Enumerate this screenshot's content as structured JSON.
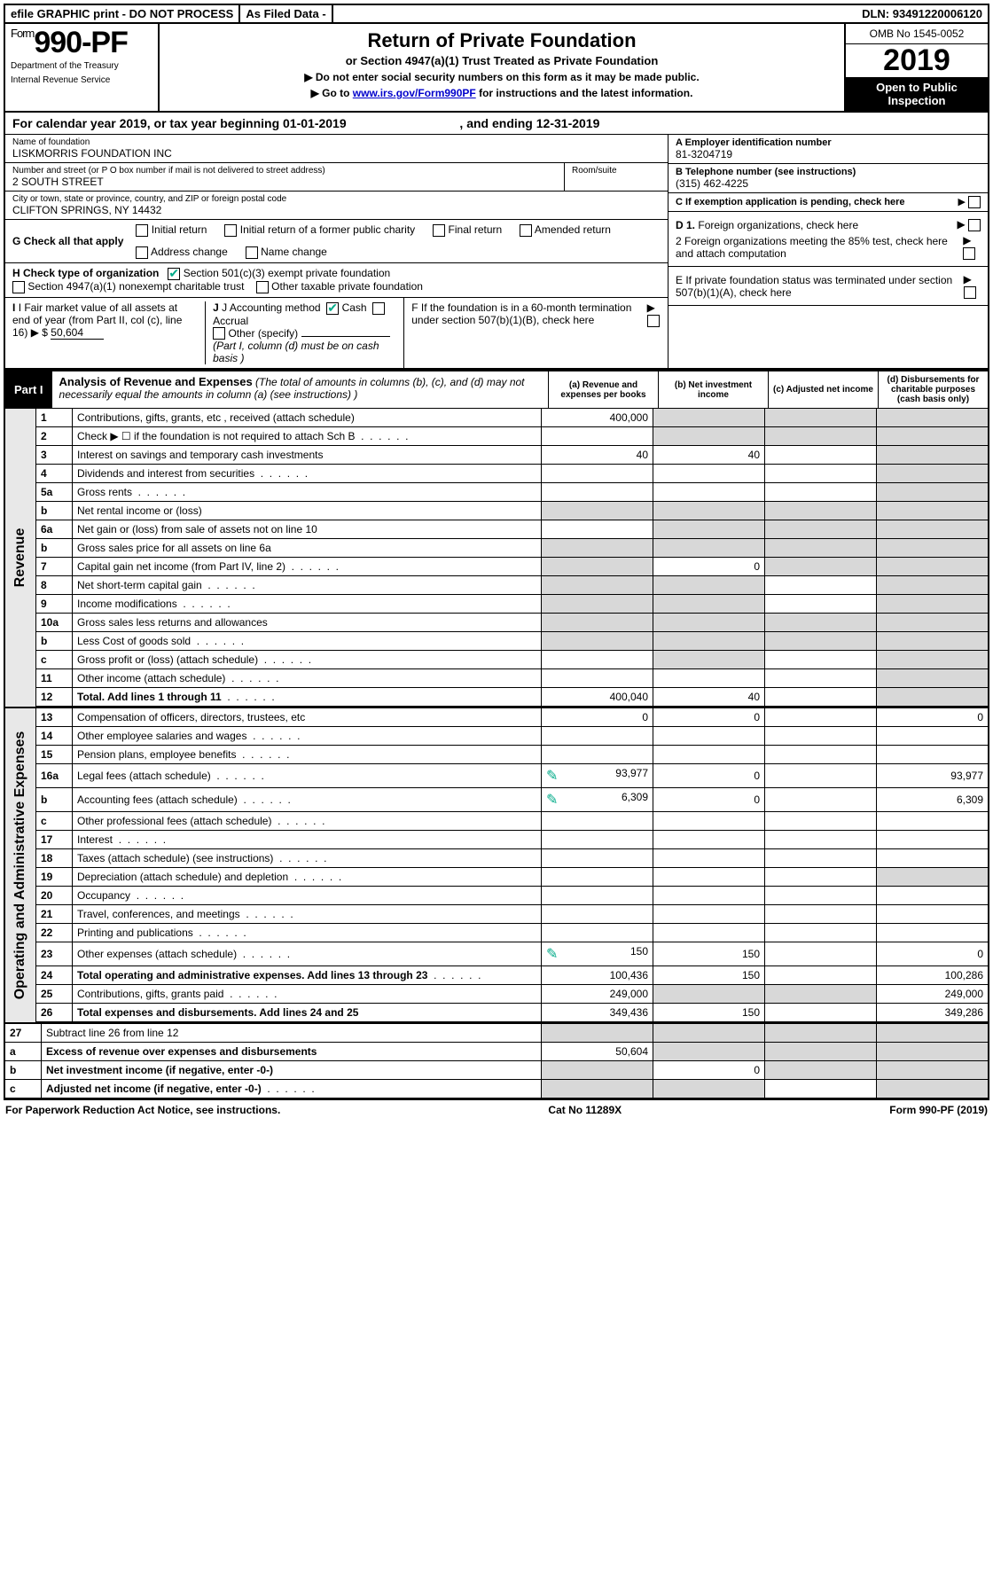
{
  "topbar": {
    "efile": "efile GRAPHIC print - DO NOT PROCESS",
    "asfiled": "As Filed Data -",
    "dln_label": "DLN:",
    "dln": "93491220006120"
  },
  "header": {
    "form_prefix": "Form",
    "form_number": "990-PF",
    "dept1": "Department of the Treasury",
    "dept2": "Internal Revenue Service",
    "title": "Return of Private Foundation",
    "subtitle": "or Section 4947(a)(1) Trust Treated as Private Foundation",
    "instr1": "▶ Do not enter social security numbers on this form as it may be made public.",
    "instr2_pre": "▶ Go to ",
    "instr2_link": "www.irs.gov/Form990PF",
    "instr2_post": " for instructions and the latest information.",
    "omb": "OMB No 1545-0052",
    "year": "2019",
    "open": "Open to Public Inspection"
  },
  "cal": {
    "text_pre": "For calendar year 2019, or tax year beginning ",
    "begin": "01-01-2019",
    "mid": ", and ending ",
    "end": "12-31-2019"
  },
  "entity": {
    "name_label": "Name of foundation",
    "name": "LISKMORRIS FOUNDATION INC",
    "addr_label": "Number and street (or P O  box number if mail is not delivered to street address)",
    "addr": "2 SOUTH STREET",
    "room_label": "Room/suite",
    "city_label": "City or town, state or province, country, and ZIP or foreign postal code",
    "city": "CLIFTON SPRINGS, NY  14432",
    "a_label": "A Employer identification number",
    "a_val": "81-3204719",
    "b_label": "B Telephone number (see instructions)",
    "b_val": "(315) 462-4225",
    "c_label": "C If exemption application is pending, check here"
  },
  "g": {
    "label": "G Check all that apply",
    "opts": [
      "Initial return",
      "Initial return of a former public charity",
      "Final return",
      "Amended return",
      "Address change",
      "Name change"
    ]
  },
  "h": {
    "label": "H Check type of organization",
    "opt1": "Section 501(c)(3) exempt private foundation",
    "opt2": "Section 4947(a)(1) nonexempt charitable trust",
    "opt3": "Other taxable private foundation"
  },
  "d": {
    "d1": "D 1. Foreign organizations, check here",
    "d2": "2 Foreign organizations meeting the 85% test, check here and attach computation",
    "e": "E  If private foundation status was terminated under section 507(b)(1)(A), check here",
    "f": "F  If the foundation is in a 60-month termination under section 507(b)(1)(B), check here"
  },
  "i": {
    "label": "I Fair market value of all assets at end of year (from Part II, col  (c), line 16) ",
    "arrow": "▶",
    "dollar": "$",
    "val": "50,604"
  },
  "j": {
    "label": "J Accounting method",
    "cash": "Cash",
    "accrual": "Accrual",
    "other": "Other (specify)",
    "note": "(Part I, column (d) must be on cash basis )"
  },
  "part1": {
    "label": "Part I",
    "title": "Analysis of Revenue and Expenses",
    "desc": " (The total of amounts in columns (b), (c), and (d) may not necessarily equal the amounts in column (a) (see instructions) )",
    "col_a": "(a) Revenue and expenses per books",
    "col_b": "(b) Net investment income",
    "col_c": "(c) Adjusted net income",
    "col_d": "(d) Disbursements for charitable purposes (cash basis only)"
  },
  "rev_label": "Revenue",
  "exp_label": "Operating and Administrative Expenses",
  "rows": [
    {
      "n": "1",
      "d": "Contributions, gifts, grants, etc , received (attach schedule)",
      "a": "400,000",
      "b": "",
      "c": "",
      "dcol": "",
      "b_shade": true,
      "c_shade": true,
      "d_shade": true
    },
    {
      "n": "2",
      "d": "Check ▶ ☐ if the foundation is not required to attach Sch  B",
      "a": "",
      "b": "",
      "c": "",
      "dcol": "",
      "a_shade": false,
      "b_shade": true,
      "c_shade": true,
      "d_shade": true,
      "dots": true
    },
    {
      "n": "3",
      "d": "Interest on savings and temporary cash investments",
      "a": "40",
      "b": "40",
      "c": "",
      "dcol": "",
      "d_shade": true
    },
    {
      "n": "4",
      "d": "Dividends and interest from securities",
      "a": "",
      "b": "",
      "c": "",
      "dcol": "",
      "d_shade": true,
      "dots": true
    },
    {
      "n": "5a",
      "d": "Gross rents",
      "a": "",
      "b": "",
      "c": "",
      "dcol": "",
      "d_shade": true,
      "dots": true
    },
    {
      "n": "b",
      "d": "Net rental income or (loss)",
      "a": "",
      "b": "",
      "c": "",
      "dcol": "",
      "a_shade": true,
      "b_shade": true,
      "c_shade": true,
      "d_shade": true
    },
    {
      "n": "6a",
      "d": "Net gain or (loss) from sale of assets not on line 10",
      "a": "",
      "b": "",
      "c": "",
      "dcol": "",
      "b_shade": true,
      "c_shade": true,
      "d_shade": true
    },
    {
      "n": "b",
      "d": "Gross sales price for all assets on line 6a",
      "a": "",
      "b": "",
      "c": "",
      "dcol": "",
      "a_shade": true,
      "b_shade": true,
      "c_shade": true,
      "d_shade": true
    },
    {
      "n": "7",
      "d": "Capital gain net income (from Part IV, line 2)",
      "a": "",
      "b": "0",
      "c": "",
      "dcol": "",
      "a_shade": true,
      "c_shade": true,
      "d_shade": true,
      "dots": true
    },
    {
      "n": "8",
      "d": "Net short-term capital gain",
      "a": "",
      "b": "",
      "c": "",
      "dcol": "",
      "a_shade": true,
      "b_shade": true,
      "d_shade": true,
      "dots": true
    },
    {
      "n": "9",
      "d": "Income modifications",
      "a": "",
      "b": "",
      "c": "",
      "dcol": "",
      "a_shade": true,
      "b_shade": true,
      "d_shade": true,
      "dots": true
    },
    {
      "n": "10a",
      "d": "Gross sales less returns and allowances",
      "a": "",
      "b": "",
      "c": "",
      "dcol": "",
      "a_shade": true,
      "b_shade": true,
      "c_shade": true,
      "d_shade": true
    },
    {
      "n": "b",
      "d": "Less  Cost of goods sold",
      "a": "",
      "b": "",
      "c": "",
      "dcol": "",
      "a_shade": true,
      "b_shade": true,
      "c_shade": true,
      "d_shade": true,
      "dots": true
    },
    {
      "n": "c",
      "d": "Gross profit or (loss) (attach schedule)",
      "a": "",
      "b": "",
      "c": "",
      "dcol": "",
      "b_shade": true,
      "d_shade": true,
      "dots": true
    },
    {
      "n": "11",
      "d": "Other income (attach schedule)",
      "a": "",
      "b": "",
      "c": "",
      "dcol": "",
      "d_shade": true,
      "dots": true
    },
    {
      "n": "12",
      "d": "Total. Add lines 1 through 11",
      "a": "400,040",
      "b": "40",
      "c": "",
      "dcol": "",
      "bold": true,
      "d_shade": true,
      "dots": true
    }
  ],
  "exp_rows": [
    {
      "n": "13",
      "d": "Compensation of officers, directors, trustees, etc",
      "a": "0",
      "b": "0",
      "c": "",
      "dcol": "0"
    },
    {
      "n": "14",
      "d": "Other employee salaries and wages",
      "a": "",
      "b": "",
      "c": "",
      "dcol": "",
      "dots": true
    },
    {
      "n": "15",
      "d": "Pension plans, employee benefits",
      "a": "",
      "b": "",
      "c": "",
      "dcol": "",
      "dots": true
    },
    {
      "n": "16a",
      "d": "Legal fees (attach schedule)",
      "a": "93,977",
      "b": "0",
      "c": "",
      "dcol": "93,977",
      "pencil": true,
      "dots": true
    },
    {
      "n": "b",
      "d": "Accounting fees (attach schedule)",
      "a": "6,309",
      "b": "0",
      "c": "",
      "dcol": "6,309",
      "pencil": true,
      "dots": true
    },
    {
      "n": "c",
      "d": "Other professional fees (attach schedule)",
      "a": "",
      "b": "",
      "c": "",
      "dcol": "",
      "dots": true
    },
    {
      "n": "17",
      "d": "Interest",
      "a": "",
      "b": "",
      "c": "",
      "dcol": "",
      "dots": true
    },
    {
      "n": "18",
      "d": "Taxes (attach schedule) (see instructions)",
      "a": "",
      "b": "",
      "c": "",
      "dcol": "",
      "dots": true
    },
    {
      "n": "19",
      "d": "Depreciation (attach schedule) and depletion",
      "a": "",
      "b": "",
      "c": "",
      "dcol": "",
      "d_shade": true,
      "dots": true
    },
    {
      "n": "20",
      "d": "Occupancy",
      "a": "",
      "b": "",
      "c": "",
      "dcol": "",
      "dots": true
    },
    {
      "n": "21",
      "d": "Travel, conferences, and meetings",
      "a": "",
      "b": "",
      "c": "",
      "dcol": "",
      "dots": true
    },
    {
      "n": "22",
      "d": "Printing and publications",
      "a": "",
      "b": "",
      "c": "",
      "dcol": "",
      "dots": true
    },
    {
      "n": "23",
      "d": "Other expenses (attach schedule)",
      "a": "150",
      "b": "150",
      "c": "",
      "dcol": "0",
      "pencil": true,
      "dots": true
    },
    {
      "n": "24",
      "d": "Total operating and administrative expenses. Add lines 13 through 23",
      "a": "100,436",
      "b": "150",
      "c": "",
      "dcol": "100,286",
      "bold": true,
      "dots": true
    },
    {
      "n": "25",
      "d": "Contributions, gifts, grants paid",
      "a": "249,000",
      "b": "",
      "c": "",
      "dcol": "249,000",
      "b_shade": true,
      "c_shade": true,
      "dots": true
    },
    {
      "n": "26",
      "d": "Total expenses and disbursements. Add lines 24 and 25",
      "a": "349,436",
      "b": "150",
      "c": "",
      "dcol": "349,286",
      "bold": true
    }
  ],
  "net_rows": [
    {
      "n": "27",
      "d": "Subtract line 26 from line 12",
      "a": "",
      "b": "",
      "c": "",
      "dcol": "",
      "a_shade": true,
      "b_shade": true,
      "c_shade": true,
      "d_shade": true
    },
    {
      "n": "a",
      "d": "Excess of revenue over expenses and disbursements",
      "a": "50,604",
      "b": "",
      "c": "",
      "dcol": "",
      "bold": true,
      "b_shade": true,
      "c_shade": true,
      "d_shade": true
    },
    {
      "n": "b",
      "d": "Net investment income (if negative, enter -0-)",
      "a": "",
      "b": "0",
      "c": "",
      "dcol": "",
      "bold": true,
      "a_shade": true,
      "c_shade": true,
      "d_shade": true
    },
    {
      "n": "c",
      "d": "Adjusted net income (if negative, enter -0-)",
      "a": "",
      "b": "",
      "c": "",
      "dcol": "",
      "bold": true,
      "a_shade": true,
      "b_shade": true,
      "d_shade": true,
      "dots": true
    }
  ],
  "footer": {
    "left": "For Paperwork Reduction Act Notice, see instructions.",
    "center": "Cat  No  11289X",
    "right": "Form 990-PF (2019)"
  }
}
